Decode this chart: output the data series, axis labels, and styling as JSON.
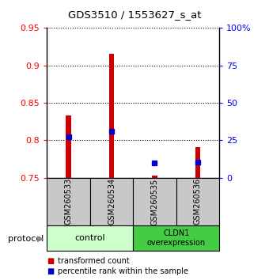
{
  "title": "GDS3510 / 1553627_s_at",
  "samples": [
    "GSM260533",
    "GSM260534",
    "GSM260535",
    "GSM260536"
  ],
  "transformed_count": [
    0.833,
    0.916,
    0.753,
    0.791
  ],
  "transformed_count_base": [
    0.75,
    0.75,
    0.75,
    0.75
  ],
  "percentile_rank": [
    0.805,
    0.812,
    0.77,
    0.771
  ],
  "ylim": [
    0.75,
    0.95
  ],
  "yticks": [
    0.75,
    0.8,
    0.85,
    0.9,
    0.95
  ],
  "ytick_labels_left": [
    "0.75",
    "0.8",
    "0.85",
    "0.9",
    "0.95"
  ],
  "ytick_labels_right": [
    "0",
    "25",
    "50",
    "75",
    "100%"
  ],
  "bar_color": "#cc0000",
  "percentile_color": "#0000cc",
  "bg_color": "#c8c8c8",
  "control_color": "#ccffcc",
  "cldn1_color": "#44cc44",
  "plot_bg": "#ffffff",
  "bar_width": 0.12
}
